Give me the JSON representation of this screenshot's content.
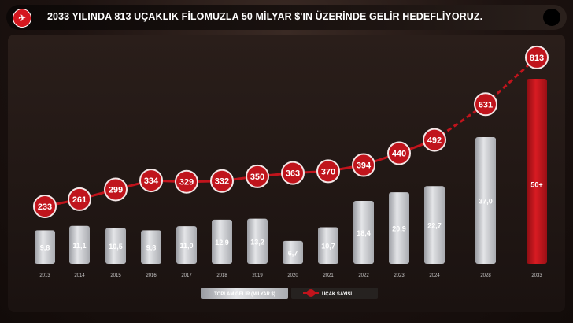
{
  "header": {
    "title": "2033 YILINDA 813 UÇAKLIK FİLOMUZLA 50 MİLYAR $'IN ÜZERİNDE GELİR HEDEFLİYORUZ.",
    "logo_icon": "turkish-airlines-logo"
  },
  "chart_data": {
    "type": "bar",
    "title": "2033 YILINDA 813 UÇAKLIK FİLOMUZLA 50 MİLYAR $'IN ÜZERİNDE GELİR HEDEFLİYORUZ.",
    "categories": [
      "2013",
      "2014",
      "2015",
      "2016",
      "2017",
      "2018",
      "2019",
      "2020",
      "2021",
      "2022",
      "2023",
      "2024",
      "2028",
      "2033"
    ],
    "series": [
      {
        "name": "TOPLAM GELİR (MİLYAR $)",
        "type": "bar",
        "values": [
          9.8,
          11.1,
          10.5,
          9.8,
          11.0,
          12.9,
          13.2,
          6.7,
          10.7,
          18.4,
          20.9,
          22.7,
          37.0,
          50
        ],
        "labels": [
          "9,8",
          "11,1",
          "10,5",
          "9,8",
          "11,0",
          "12,9",
          "13,2",
          "6,7",
          "10,7",
          "18,4",
          "20,9",
          "22,7",
          "37,0",
          "50+"
        ]
      },
      {
        "name": "UÇAK SAYISI",
        "type": "line",
        "values": [
          233,
          261,
          299,
          334,
          329,
          332,
          350,
          363,
          370,
          394,
          440,
          492,
          631,
          813
        ],
        "dashed_from": "2024"
      }
    ],
    "colors": {
      "bar": "#c9cbd0",
      "target_bar": "#c0141c",
      "marker": "#c0141c",
      "line": "#c0141c"
    },
    "legend": "bottom-center",
    "grid": false
  }
}
